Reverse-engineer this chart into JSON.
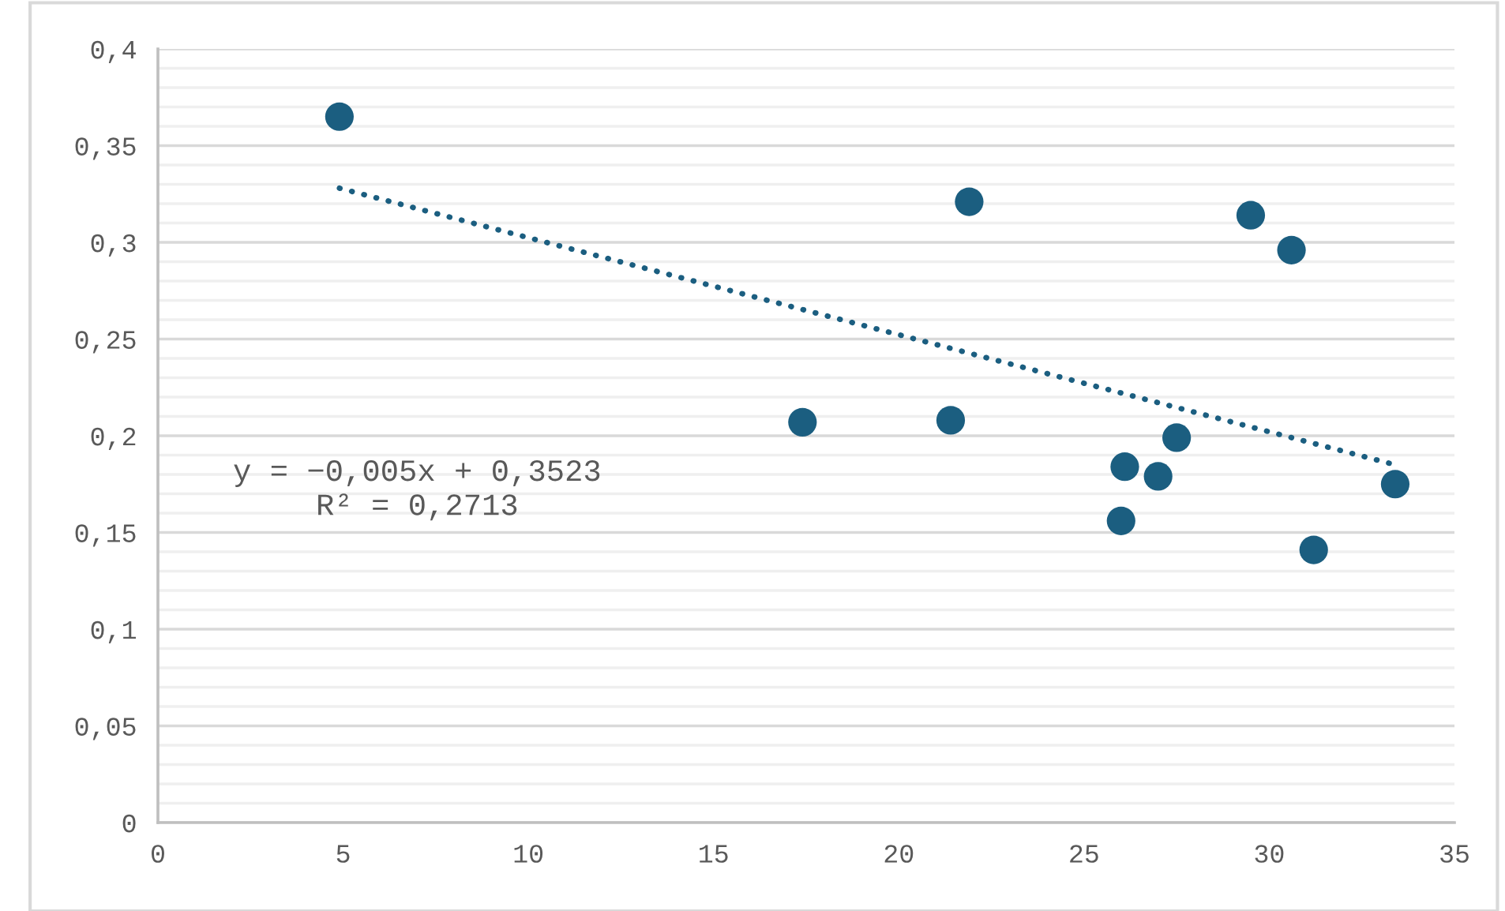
{
  "chart_data": {
    "type": "scatter",
    "xlim": [
      0,
      35
    ],
    "xticks": [
      0,
      5,
      10,
      15,
      20,
      25,
      30,
      35
    ],
    "ylim": [
      0,
      0.4
    ],
    "yticks": [
      {
        "value": 0,
        "label": "0"
      },
      {
        "value": 0.01,
        "label": null
      },
      {
        "value": 0.02,
        "label": null
      },
      {
        "value": 0.03,
        "label": null
      },
      {
        "value": 0.04,
        "label": null
      },
      {
        "value": 0.05,
        "label": "0,05"
      },
      {
        "value": 0.06,
        "label": null
      },
      {
        "value": 0.07,
        "label": null
      },
      {
        "value": 0.08,
        "label": null
      },
      {
        "value": 0.09,
        "label": null
      },
      {
        "value": 0.1,
        "label": "0,1"
      },
      {
        "value": 0.11,
        "label": null
      },
      {
        "value": 0.12,
        "label": null
      },
      {
        "value": 0.13,
        "label": null
      },
      {
        "value": 0.14,
        "label": null
      },
      {
        "value": 0.15,
        "label": "0,15"
      },
      {
        "value": 0.16,
        "label": null
      },
      {
        "value": 0.17,
        "label": null
      },
      {
        "value": 0.18,
        "label": null
      },
      {
        "value": 0.19,
        "label": null
      },
      {
        "value": 0.2,
        "label": "0,2"
      },
      {
        "value": 0.21,
        "label": null
      },
      {
        "value": 0.22,
        "label": null
      },
      {
        "value": 0.23,
        "label": null
      },
      {
        "value": 0.24,
        "label": null
      },
      {
        "value": 0.25,
        "label": "0,25"
      },
      {
        "value": 0.26,
        "label": null
      },
      {
        "value": 0.27,
        "label": null
      },
      {
        "value": 0.28,
        "label": null
      },
      {
        "value": 0.29,
        "label": null
      },
      {
        "value": 0.3,
        "label": "0,3"
      },
      {
        "value": 0.31,
        "label": null
      },
      {
        "value": 0.32,
        "label": null
      },
      {
        "value": 0.33,
        "label": null
      },
      {
        "value": 0.34,
        "label": null
      },
      {
        "value": 0.35,
        "label": "0,35"
      },
      {
        "value": 0.36,
        "label": null
      },
      {
        "value": 0.37,
        "label": null
      },
      {
        "value": 0.38,
        "label": null
      },
      {
        "value": 0.39,
        "label": null
      },
      {
        "value": 0.4,
        "label": "0,4"
      }
    ],
    "grid": "y",
    "marker": "circle",
    "legend": false,
    "series": [
      {
        "color": "#1b5e80",
        "x": [
          4.9,
          17.4,
          21.4,
          21.9,
          26.0,
          26.1,
          27.0,
          27.5,
          29.5,
          30.6,
          31.2,
          33.4
        ],
        "values": [
          0.365,
          0.207,
          0.208,
          0.321,
          0.156,
          0.184,
          0.179,
          0.199,
          0.314,
          0.296,
          0.141,
          0.175
        ]
      },
      {
        "type": "line",
        "color": "#1b5e80",
        "line_style": "dotted",
        "marker": "none",
        "x": [
          4.9,
          33.4
        ],
        "values": [
          0.328,
          0.185
        ]
      }
    ],
    "annotations": [
      "y = −0,005x + 0,3523\nR² = 0,2713"
    ]
  }
}
